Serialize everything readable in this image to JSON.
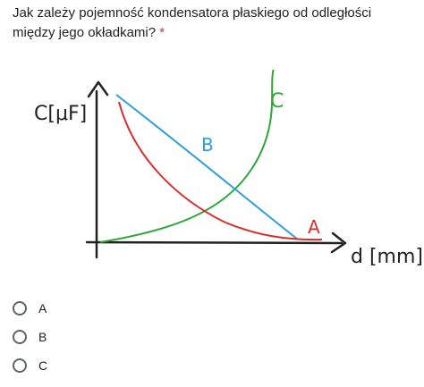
{
  "question": {
    "text": "Jak zależy pojemność kondensatora płaskiego od odległości między jego okładkami?",
    "required_marker": "*"
  },
  "figure": {
    "y_axis_label": "C[μF]",
    "x_axis_label": "d [mm]",
    "curves": [
      {
        "label": "A",
        "color": "#d62e2e"
      },
      {
        "label": "B",
        "color": "#2e9fd6"
      },
      {
        "label": "C",
        "color": "#2fa63a"
      }
    ]
  },
  "options": [
    {
      "label": "A",
      "selected": false
    },
    {
      "label": "B",
      "selected": false
    },
    {
      "label": "C",
      "selected": false
    }
  ]
}
